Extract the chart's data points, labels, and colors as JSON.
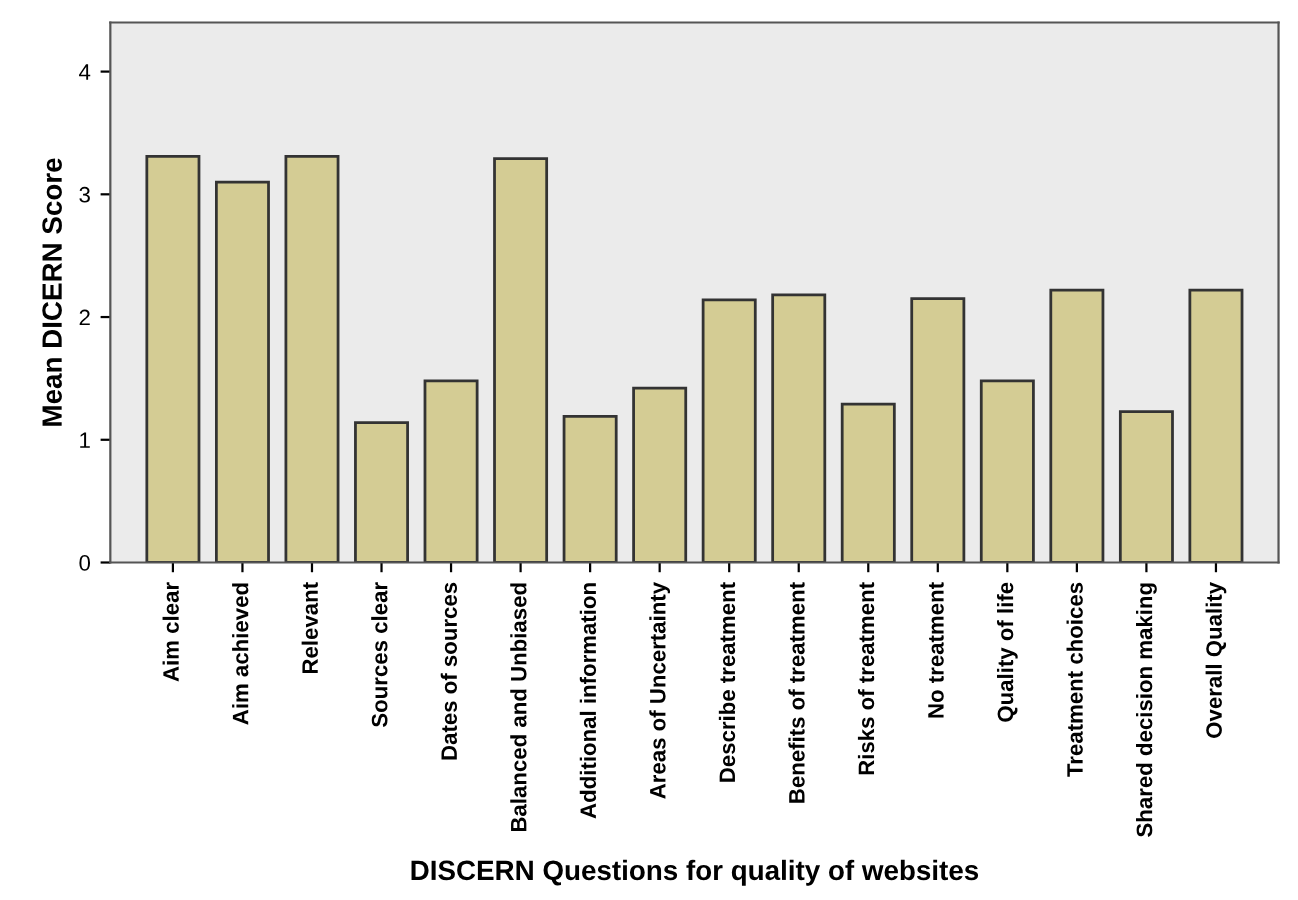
{
  "chart_data": {
    "type": "bar",
    "xlabel": "DISCERN Questions for quality of websites",
    "ylabel": "Mean DICERN Score",
    "categories": [
      "Aim clear",
      "Aim achieved",
      "Relevant",
      "Sources clear",
      "Dates of sources",
      "Balanced and Unbiased",
      "Additional information",
      "Areas of Uncertainty",
      "Describe treatment",
      "Benefits of treatment",
      "Risks of treatment",
      "No treatment",
      "Quality of life",
      "Treatment choices",
      "Shared decision making",
      "Overall Quality"
    ],
    "values": [
      3.31,
      3.1,
      3.31,
      1.14,
      1.48,
      3.29,
      1.19,
      1.42,
      2.14,
      2.18,
      1.29,
      2.15,
      1.48,
      2.22,
      1.23,
      2.22
    ],
    "color": "#d4cc94",
    "ylim": [
      0,
      4.4
    ],
    "yticks": [
      0,
      1,
      2,
      3,
      4
    ],
    "grid": false
  }
}
